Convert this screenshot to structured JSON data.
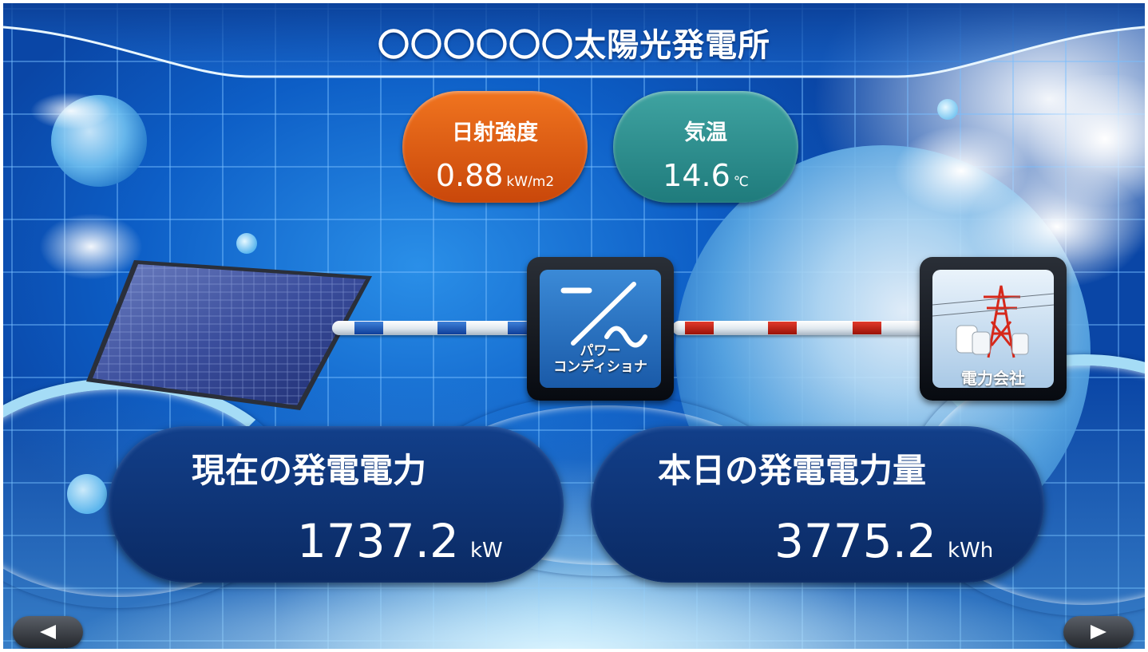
{
  "header": {
    "title": "〇〇〇〇〇〇太陽光発電所"
  },
  "sensors": {
    "irradiance": {
      "label": "日射強度",
      "value": "0.88",
      "unit": "kW/m2",
      "color": "#e0601a"
    },
    "temperature": {
      "label": "気温",
      "value": "14.6",
      "unit": "℃",
      "color": "#2e8e8e"
    }
  },
  "devices": {
    "inverter": {
      "label_line1": "パワー",
      "label_line2": "コンディショナ",
      "icon": "dc-ac-converter-icon"
    },
    "utility": {
      "label": "電力会社",
      "icon": "power-tower-icon"
    }
  },
  "power": {
    "current": {
      "title": "現在の発電電力",
      "value": "1737.2",
      "unit": "kW"
    },
    "today": {
      "title": "本日の発電電力量",
      "value": "3775.2",
      "unit": "kWh"
    }
  },
  "nav": {
    "prev_icon": "triangle-left-icon",
    "next_icon": "triangle-right-icon"
  },
  "colors": {
    "dc_line": "#1a56b8",
    "ac_line": "#c41f12",
    "panel_bg": "#0e3275",
    "background": "#0d5ec6"
  }
}
